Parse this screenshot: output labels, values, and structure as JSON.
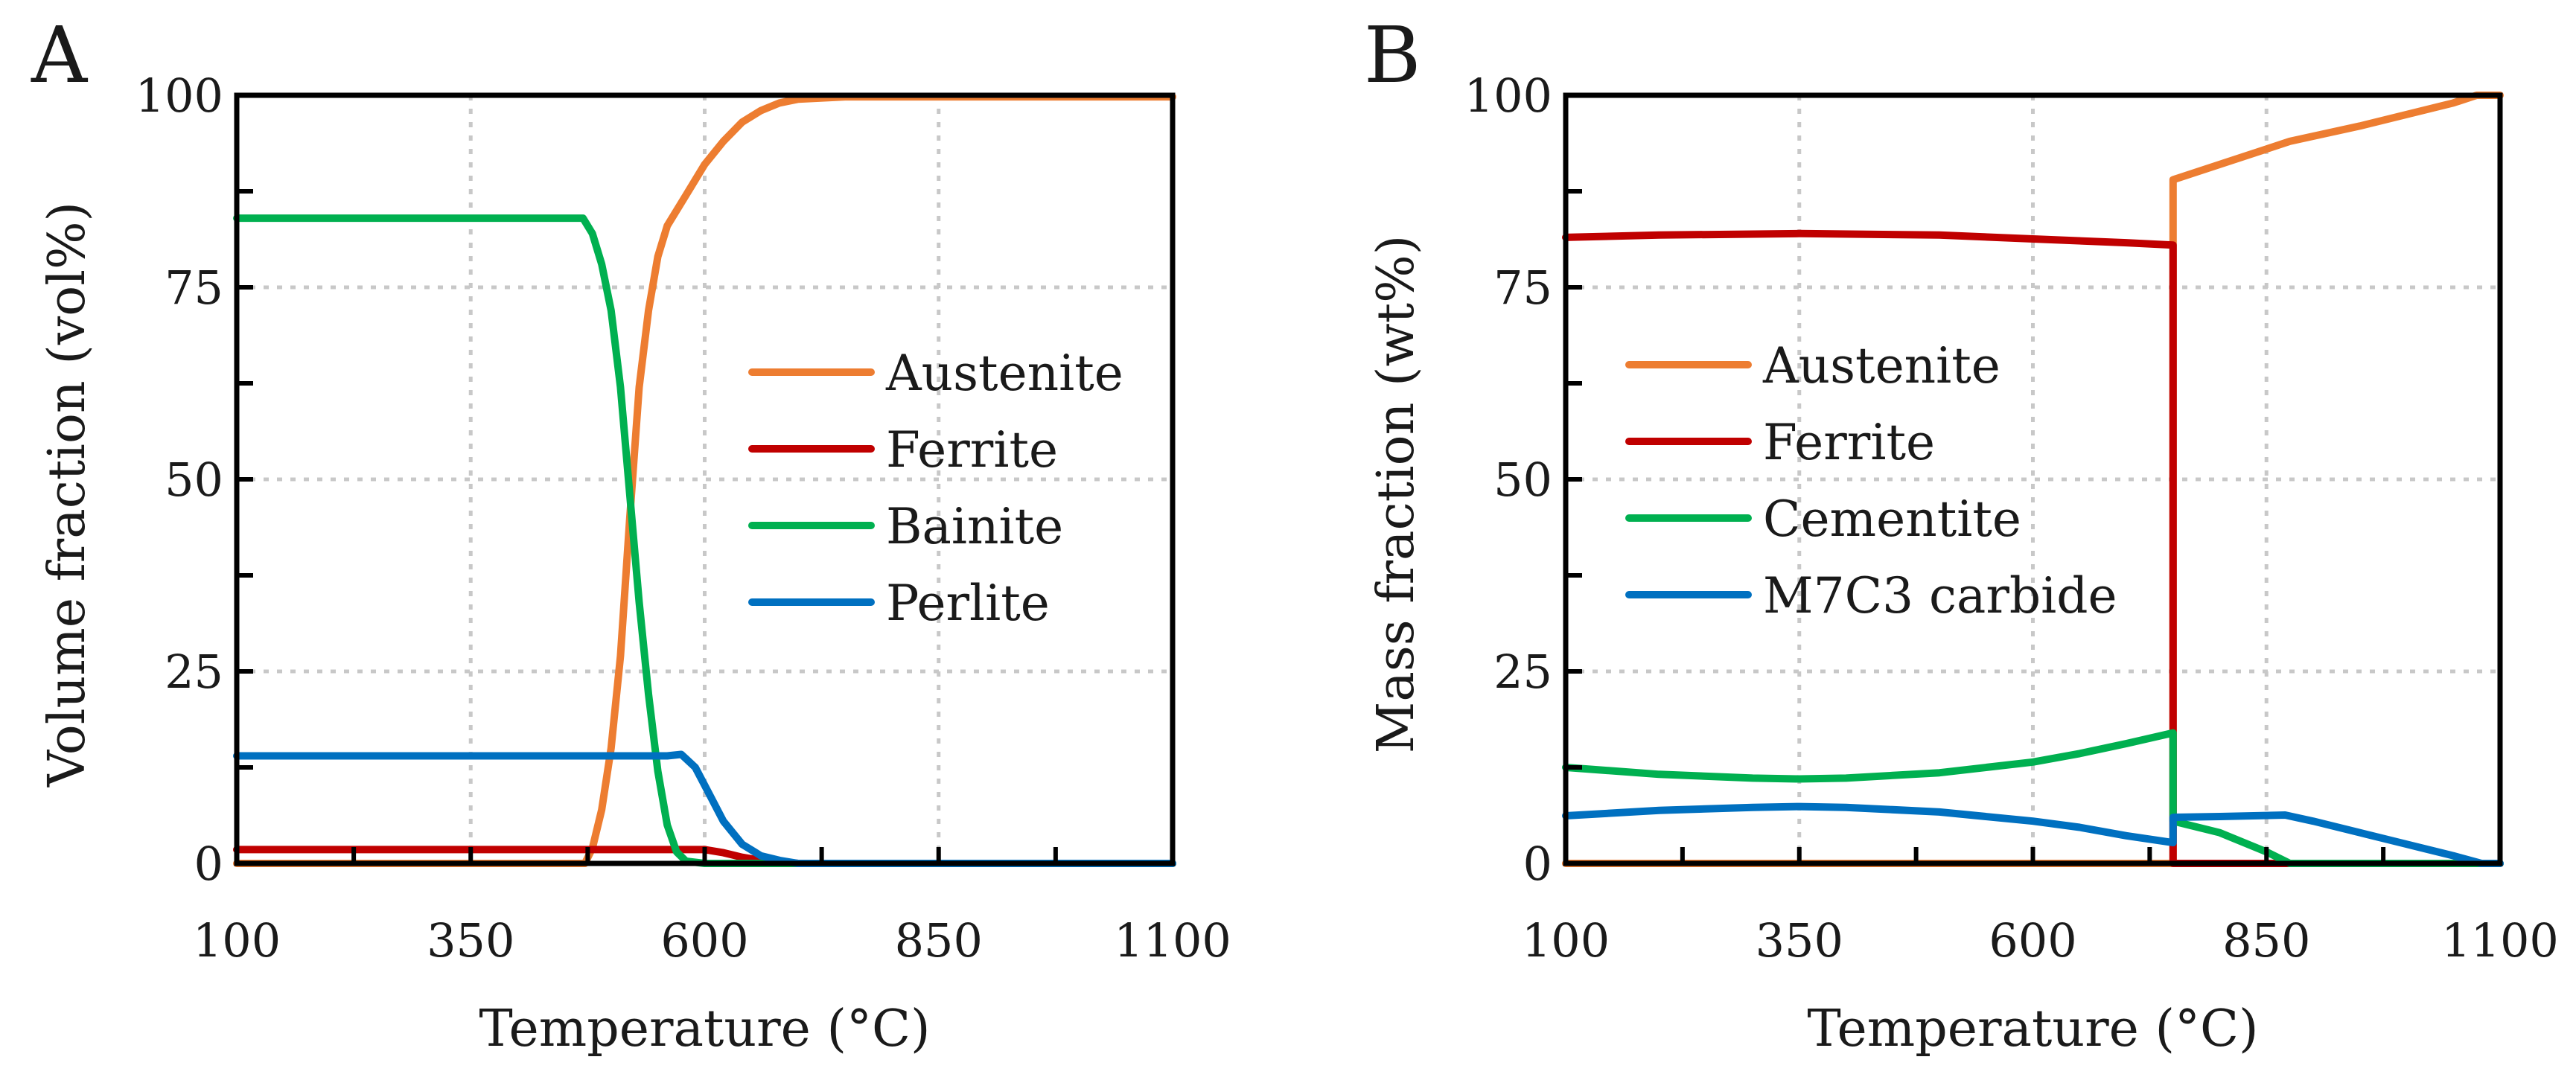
{
  "chart_data": [
    {
      "panel_letter": "A",
      "type": "line",
      "xlabel": "Temperature (°C)",
      "ylabel": "Volume fraction (vol%)",
      "xlim": [
        100,
        1100
      ],
      "ylim": [
        0,
        100
      ],
      "xticks": [
        100,
        350,
        600,
        850,
        1100
      ],
      "yticks": [
        0,
        25,
        50,
        75,
        100
      ],
      "grid": true,
      "legend_position": "center-right",
      "series": [
        {
          "name": "Austenite",
          "color": "#ED7D31",
          "points": [
            [
              100,
              0
            ],
            [
              460,
              0
            ],
            [
              472,
              0
            ],
            [
              480,
              2
            ],
            [
              490,
              7
            ],
            [
              500,
              15
            ],
            [
              510,
              27
            ],
            [
              520,
              45
            ],
            [
              530,
              62
            ],
            [
              540,
              72
            ],
            [
              550,
              79
            ],
            [
              560,
              83
            ],
            [
              580,
              87
            ],
            [
              600,
              91
            ],
            [
              620,
              94
            ],
            [
              640,
              96.5
            ],
            [
              660,
              98
            ],
            [
              680,
              99
            ],
            [
              700,
              99.5
            ],
            [
              750,
              99.8
            ],
            [
              850,
              99.8
            ],
            [
              1100,
              99.8
            ]
          ]
        },
        {
          "name": "Ferrite",
          "color": "#C00000",
          "points": [
            [
              100,
              1.8
            ],
            [
              580,
              1.8
            ],
            [
              600,
              1.8
            ],
            [
              620,
              1.4
            ],
            [
              640,
              0.8
            ],
            [
              660,
              0.4
            ],
            [
              700,
              0
            ],
            [
              1100,
              0
            ]
          ]
        },
        {
          "name": "Bainite",
          "color": "#00B050",
          "points": [
            [
              100,
              84
            ],
            [
              460,
              84
            ],
            [
              470,
              84
            ],
            [
              480,
              82
            ],
            [
              490,
              78
            ],
            [
              500,
              72
            ],
            [
              510,
              62
            ],
            [
              520,
              48
            ],
            [
              530,
              34
            ],
            [
              540,
              22
            ],
            [
              550,
              12
            ],
            [
              560,
              5
            ],
            [
              570,
              1.5
            ],
            [
              580,
              0.3
            ],
            [
              600,
              0
            ],
            [
              1100,
              0
            ]
          ]
        },
        {
          "name": "Perlite",
          "color": "#0070C0",
          "points": [
            [
              100,
              14
            ],
            [
              560,
              14
            ],
            [
              575,
              14.2
            ],
            [
              590,
              12.5
            ],
            [
              605,
              9
            ],
            [
              620,
              5.5
            ],
            [
              640,
              2.5
            ],
            [
              660,
              1
            ],
            [
              680,
              0.4
            ],
            [
              700,
              0
            ],
            [
              1100,
              0
            ]
          ]
        }
      ]
    },
    {
      "panel_letter": "B",
      "type": "line",
      "xlabel": "Temperature (°C)",
      "ylabel": "Mass fraction (wt%)",
      "xlim": [
        100,
        1100
      ],
      "ylim": [
        0,
        100
      ],
      "xticks": [
        100,
        350,
        600,
        850,
        1100
      ],
      "yticks": [
        0,
        25,
        50,
        75,
        100
      ],
      "grid": true,
      "legend_position": "upper-left",
      "series": [
        {
          "name": "Austenite",
          "color": "#ED7D31",
          "points": [
            [
              100,
              0
            ],
            [
              750,
              0
            ],
            [
              750,
              89
            ],
            [
              800,
              91
            ],
            [
              850,
              93
            ],
            [
              875,
              94
            ],
            [
              950,
              96
            ],
            [
              1000,
              97.5
            ],
            [
              1050,
              99
            ],
            [
              1075,
              100
            ],
            [
              1100,
              100
            ]
          ]
        },
        {
          "name": "Ferrite",
          "color": "#C00000",
          "points": [
            [
              100,
              81.5
            ],
            [
              200,
              81.8
            ],
            [
              350,
              82
            ],
            [
              500,
              81.8
            ],
            [
              600,
              81.3
            ],
            [
              700,
              80.8
            ],
            [
              750,
              80.5
            ],
            [
              750,
              0
            ],
            [
              1100,
              0
            ]
          ]
        },
        {
          "name": "Cementite",
          "color": "#00B050",
          "points": [
            [
              100,
              12.5
            ],
            [
              200,
              11.6
            ],
            [
              300,
              11.1
            ],
            [
              350,
              11
            ],
            [
              400,
              11.1
            ],
            [
              500,
              11.8
            ],
            [
              600,
              13.2
            ],
            [
              650,
              14.3
            ],
            [
              700,
              15.6
            ],
            [
              750,
              17
            ],
            [
              750,
              5.5
            ],
            [
              800,
              4
            ],
            [
              850,
              1.5
            ],
            [
              875,
              0
            ],
            [
              1100,
              0
            ]
          ]
        },
        {
          "name": "M7C3 carbide",
          "color": "#0070C0",
          "points": [
            [
              100,
              6.2
            ],
            [
              200,
              6.9
            ],
            [
              300,
              7.3
            ],
            [
              350,
              7.4
            ],
            [
              400,
              7.3
            ],
            [
              500,
              6.7
            ],
            [
              600,
              5.5
            ],
            [
              650,
              4.7
            ],
            [
              700,
              3.6
            ],
            [
              750,
              2.7
            ],
            [
              750,
              6
            ],
            [
              800,
              6.1
            ],
            [
              870,
              6.3
            ],
            [
              900,
              5.5
            ],
            [
              950,
              4
            ],
            [
              1000,
              2.5
            ],
            [
              1050,
              1
            ],
            [
              1080,
              0
            ],
            [
              1100,
              0
            ]
          ]
        }
      ]
    }
  ]
}
